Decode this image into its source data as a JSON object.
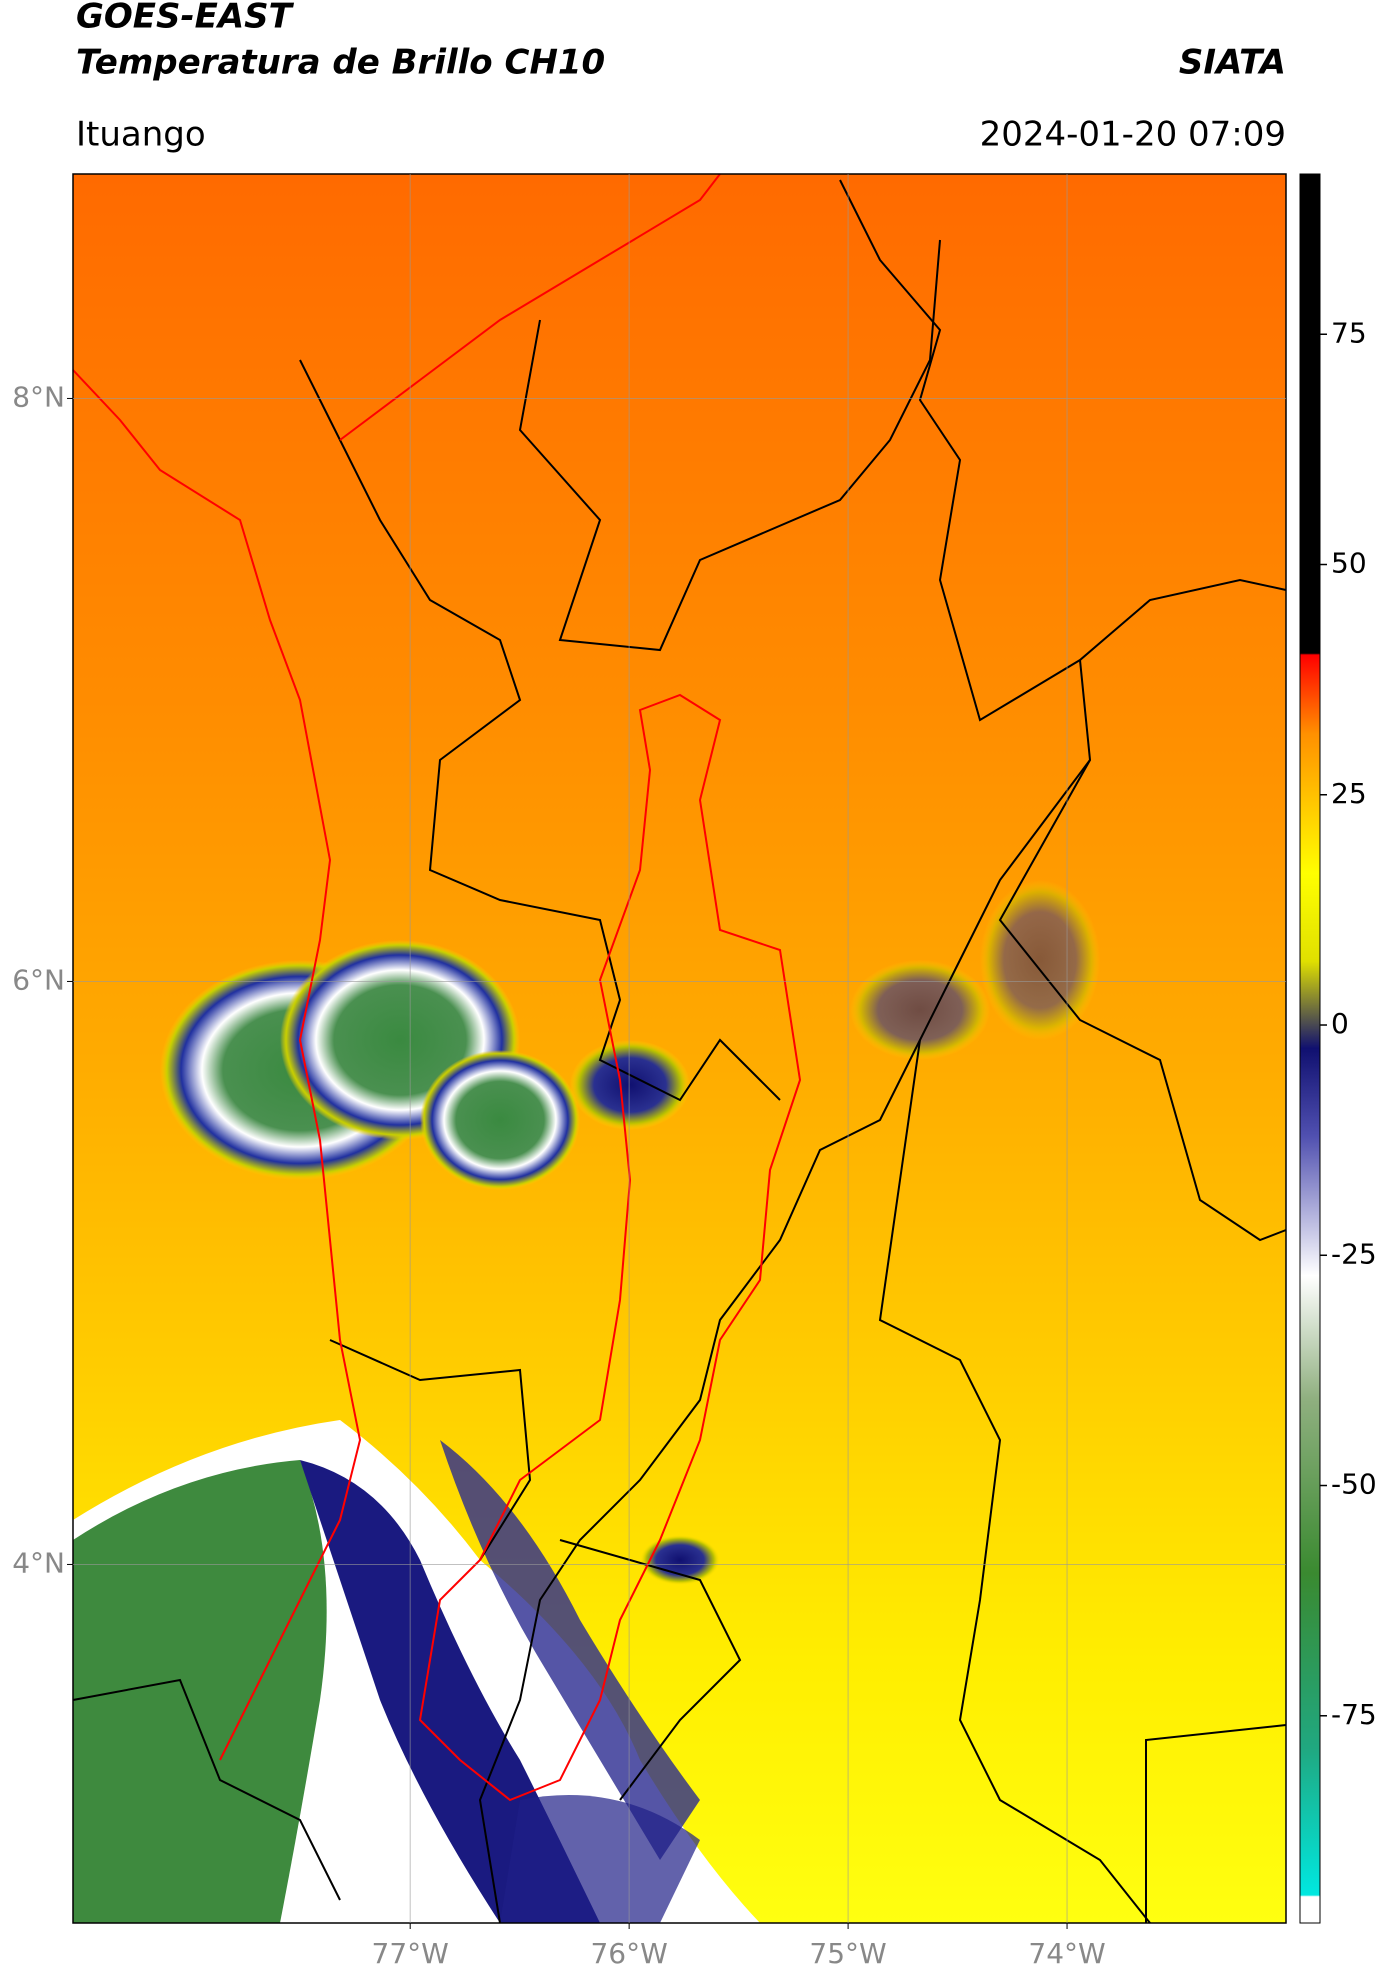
{
  "map": {
    "title": [
      "GOES-EAST",
      "Temperatura de Brillo CH10"
    ],
    "source": "SIATA",
    "location": "Ituango",
    "timestamp": "2024-01-20 07:09",
    "xlim": [
      -78.54,
      -73.0
    ],
    "ylim": [
      2.77,
      8.77
    ],
    "xticks": [
      {
        "value": -77,
        "label": "77°W"
      },
      {
        "value": -76,
        "label": "76°W"
      },
      {
        "value": -75,
        "label": "75°W"
      },
      {
        "value": -74,
        "label": "74°W"
      }
    ],
    "yticks": [
      {
        "value": 8,
        "label": "8°N"
      },
      {
        "value": 6,
        "label": "6°N"
      },
      {
        "value": 4,
        "label": "4°N"
      }
    ],
    "grid": true,
    "colorbar": {
      "lim": [
        -97.5,
        92.4
      ],
      "ticks": [
        75,
        50,
        25,
        0,
        -25,
        -50,
        -75
      ]
    }
  }
}
